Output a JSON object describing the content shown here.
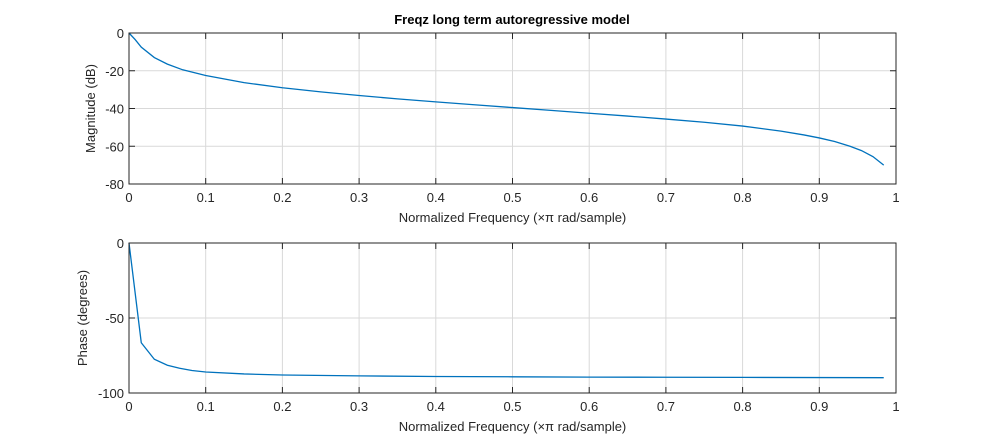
{
  "figure": {
    "title": "Freqz long term autoregressive model"
  },
  "chart_data": [
    {
      "type": "line",
      "title": "Freqz long term autoregressive model",
      "xlabel": "Normalized Frequency  (×π rad/sample)",
      "ylabel": "Magnitude (dB)",
      "xlim": [
        0,
        1
      ],
      "ylim": [
        -80,
        0
      ],
      "xticks": [
        "0",
        "0.1",
        "0.2",
        "0.3",
        "0.4",
        "0.5",
        "0.6",
        "0.7",
        "0.8",
        "0.9",
        "1"
      ],
      "yticks": [
        "0",
        "-20",
        "-40",
        "-60",
        "-80"
      ],
      "grid": true,
      "color": "#0072bd",
      "series": [
        {
          "x": [
            0.0,
            0.008,
            0.016,
            0.033,
            0.05,
            0.07,
            0.1,
            0.15,
            0.2,
            0.25,
            0.3,
            0.35,
            0.4,
            0.45,
            0.5,
            0.55,
            0.6,
            0.65,
            0.7,
            0.75,
            0.8,
            0.85,
            0.88,
            0.9,
            0.92,
            0.94,
            0.955,
            0.97,
            0.984
          ],
          "values": [
            0.0,
            -3.5,
            -7.5,
            -13.0,
            -16.5,
            -19.5,
            -22.5,
            -26.3,
            -29.0,
            -31.2,
            -33.1,
            -34.9,
            -36.5,
            -38.0,
            -39.5,
            -41.0,
            -42.5,
            -44.0,
            -45.6,
            -47.3,
            -49.3,
            -52.0,
            -54.0,
            -55.6,
            -57.5,
            -60.0,
            -62.3,
            -65.5,
            -70.0
          ]
        }
      ]
    },
    {
      "type": "line",
      "title": "",
      "xlabel": "Normalized Frequency  (×π rad/sample)",
      "ylabel": "Phase (degrees)",
      "xlim": [
        0,
        1
      ],
      "ylim": [
        -100,
        0
      ],
      "xticks": [
        "0",
        "0.1",
        "0.2",
        "0.3",
        "0.4",
        "0.5",
        "0.6",
        "0.7",
        "0.8",
        "0.9",
        "1"
      ],
      "yticks": [
        "0",
        "-50",
        "-100"
      ],
      "grid": true,
      "color": "#0072bd",
      "series": [
        {
          "x": [
            0.0,
            0.016,
            0.033,
            0.05,
            0.066,
            0.082,
            0.1,
            0.15,
            0.2,
            0.3,
            0.4,
            0.5,
            0.6,
            0.7,
            0.8,
            0.9,
            0.984
          ],
          "values": [
            0.0,
            -66.5,
            -77.5,
            -81.5,
            -83.5,
            -85.0,
            -86.0,
            -87.3,
            -88.0,
            -88.6,
            -89.0,
            -89.2,
            -89.4,
            -89.5,
            -89.6,
            -89.7,
            -89.8
          ]
        }
      ]
    }
  ]
}
